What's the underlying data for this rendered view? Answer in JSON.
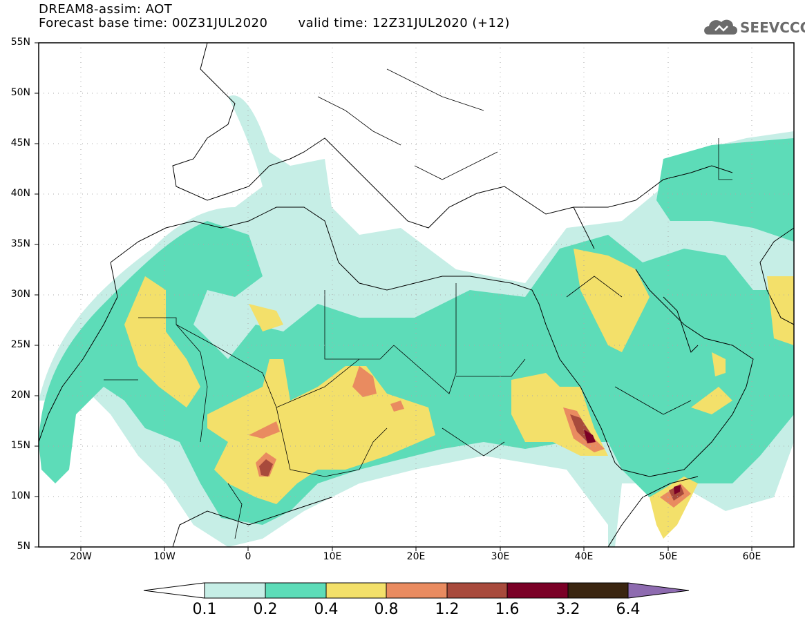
{
  "header": {
    "line1": "DREAM8-assim: AOT",
    "base_time": "Forecast base time: 00Z31JUL2020",
    "valid_time": "valid time: 12Z31JUL2020 (+12)"
  },
  "logo": {
    "text": "SEEVCCC",
    "icon": "cloud-icon"
  },
  "axes": {
    "lat_labels": [
      "55N",
      "50N",
      "45N",
      "40N",
      "35N",
      "30N",
      "25N",
      "20N",
      "15N",
      "10N",
      "5N"
    ],
    "lon_labels": [
      "20W",
      "10W",
      "0",
      "10E",
      "20E",
      "30E",
      "40E",
      "50E",
      "60E"
    ]
  },
  "colorbar": {
    "labels": [
      "0.1",
      "0.2",
      "0.4",
      "0.8",
      "1.2",
      "1.6",
      "3.2",
      "6.4"
    ],
    "colors": [
      "#ffffff",
      "#c6eee6",
      "#5ddcb8",
      "#f3e06a",
      "#e98b60",
      "#a84a3c",
      "#7a0026",
      "#3a2510",
      "#8e6bb0"
    ]
  },
  "fields": {
    "color_l1": "#c6eee6",
    "color_l2": "#5ddcb8",
    "color_l3": "#f3e06a",
    "color_l4": "#e98b60",
    "color_l5": "#a84a3c",
    "color_l6": "#7a0026"
  }
}
